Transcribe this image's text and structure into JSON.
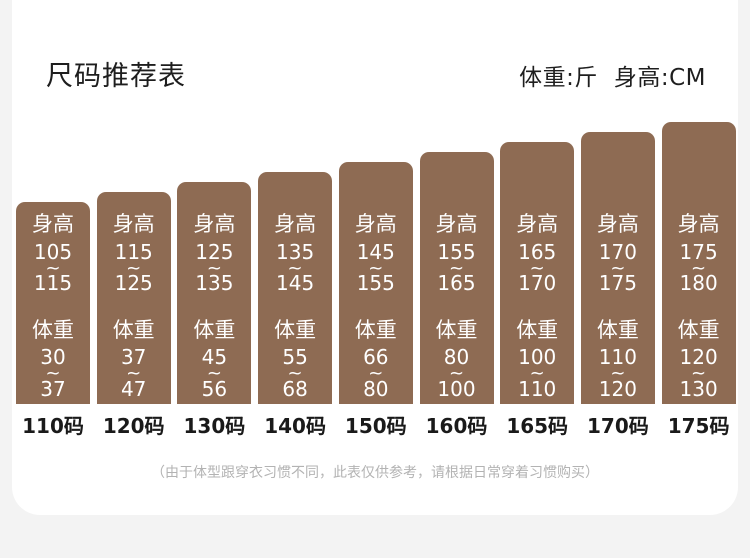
{
  "header": {
    "title": "尺码推荐表",
    "unit_weight": "体重:斤",
    "unit_height": "身高:CM"
  },
  "labels": {
    "height": "身高",
    "weight": "体重",
    "range_sep": "~"
  },
  "chart_data": {
    "type": "table",
    "columns": [
      {
        "size": "110码",
        "height_min": "105",
        "height_max": "115",
        "weight_min": "30",
        "weight_max": "37"
      },
      {
        "size": "120码",
        "height_min": "115",
        "height_max": "125",
        "weight_min": "37",
        "weight_max": "47"
      },
      {
        "size": "130码",
        "height_min": "125",
        "height_max": "135",
        "weight_min": "45",
        "weight_max": "56"
      },
      {
        "size": "140码",
        "height_min": "135",
        "height_max": "145",
        "weight_min": "55",
        "weight_max": "68"
      },
      {
        "size": "150码",
        "height_min": "145",
        "height_max": "155",
        "weight_min": "66",
        "weight_max": "80"
      },
      {
        "size": "160码",
        "height_min": "155",
        "height_max": "165",
        "weight_min": "80",
        "weight_max": "100"
      },
      {
        "size": "165码",
        "height_min": "165",
        "height_max": "170",
        "weight_min": "100",
        "weight_max": "110"
      },
      {
        "size": "170码",
        "height_min": "170",
        "height_max": "175",
        "weight_min": "110",
        "weight_max": "120"
      },
      {
        "size": "175码",
        "height_min": "175",
        "height_max": "180",
        "weight_min": "120",
        "weight_max": "130"
      }
    ]
  },
  "note": "（由于体型跟穿衣习惯不同，此表仅供参考，请根据日常穿着习惯购买）",
  "colors": {
    "bar": "#8e6b53",
    "background": "#f3f3f3",
    "card": "#ffffff"
  }
}
